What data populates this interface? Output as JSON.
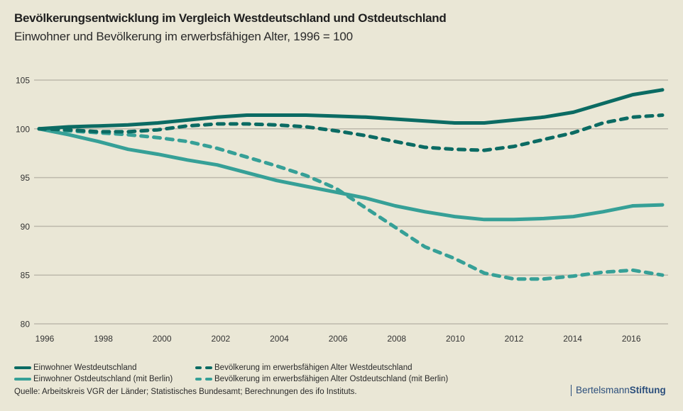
{
  "header": {
    "title": "Bevölkerungsentwicklung im Vergleich Westdeutschland und Ostdeutschland",
    "subtitle": "Einwohner und Bevölkerung im erwerbsfähigen Alter, 1996 = 100"
  },
  "colors": {
    "background": "#EAE7D6",
    "west": "#0B6B63",
    "east": "#36A097",
    "grid": "#BDB9AC",
    "brand": "#2c4f7c"
  },
  "chart_data": {
    "type": "line",
    "title": "Bevölkerungsentwicklung im Vergleich Westdeutschland und Ostdeutschland",
    "subtitle": "Einwohner und Bevölkerung im erwerbsfähigen Alter, 1996 = 100",
    "xlabel": "",
    "ylabel": "",
    "x": [
      1996,
      1997,
      1998,
      1999,
      2000,
      2001,
      2002,
      2003,
      2004,
      2005,
      2006,
      2007,
      2008,
      2009,
      2010,
      2011,
      2012,
      2013,
      2014,
      2015,
      2016,
      2017
    ],
    "xticks": [
      "1996",
      "1998",
      "2000",
      "2002",
      "2004",
      "2006",
      "2008",
      "2010",
      "2012",
      "2014",
      "2016"
    ],
    "yticks": [
      "80",
      "85",
      "90",
      "95",
      "100",
      "105"
    ],
    "ylim": [
      80,
      105
    ],
    "xlim": [
      1996,
      2017
    ],
    "grid": "horizontal",
    "legend_position": "bottom",
    "series": [
      {
        "name": "Einwohner Westdeutschland",
        "color_key": "west",
        "style": "solid",
        "values": [
          100,
          100.2,
          100.3,
          100.4,
          100.6,
          100.9,
          101.2,
          101.4,
          101.4,
          101.4,
          101.3,
          101.2,
          101.0,
          100.8,
          100.6,
          100.6,
          100.9,
          101.2,
          101.7,
          102.6,
          103.5,
          104.0
        ]
      },
      {
        "name": "Bevölkerung im erwerbsfähigen Alter Westdeutschland",
        "color_key": "west",
        "style": "dashed",
        "values": [
          100,
          99.9,
          99.7,
          99.7,
          99.9,
          100.3,
          100.5,
          100.5,
          100.4,
          100.2,
          99.8,
          99.3,
          98.7,
          98.1,
          97.9,
          97.8,
          98.2,
          98.9,
          99.6,
          100.6,
          101.2,
          101.4
        ]
      },
      {
        "name": "Einwohner Ostdeutschland (mit Berlin)",
        "color_key": "east",
        "style": "solid",
        "values": [
          100,
          99.4,
          98.7,
          97.9,
          97.4,
          96.8,
          96.3,
          95.5,
          94.7,
          94.1,
          93.5,
          92.9,
          92.1,
          91.5,
          91.0,
          90.7,
          90.7,
          90.8,
          91.0,
          91.5,
          92.1,
          92.2
        ]
      },
      {
        "name": "Bevölkerung im erwerbsfähigen Alter Ostdeutschland (mit Berlin)",
        "color_key": "east",
        "style": "dashed",
        "values": [
          100,
          99.8,
          99.6,
          99.4,
          99.1,
          98.7,
          98.0,
          97.1,
          96.2,
          95.2,
          93.9,
          91.9,
          89.9,
          87.9,
          86.7,
          85.2,
          84.6,
          84.6,
          84.9,
          85.3,
          85.5,
          85.0
        ]
      }
    ]
  },
  "legend": [
    {
      "label": "Einwohner Westdeutschland",
      "color_key": "west",
      "style": "solid"
    },
    {
      "label": "Bevölkerung im erwerbsfähigen Alter Westdeutschland",
      "color_key": "west",
      "style": "dashed"
    },
    {
      "label": "Einwohner Ostdeutschland (mit Berlin)",
      "color_key": "east",
      "style": "solid"
    },
    {
      "label": "Bevölkerung im erwerbsfähigen Alter Ostdeutschland (mit Berlin)",
      "color_key": "east",
      "style": "dashed"
    }
  ],
  "footer": {
    "source": "Quelle: Arbeitskreis VGR der Länder; Statistisches Bundesamt; Berechnungen des ifo Instituts.",
    "brand_regular": "Bertelsmann",
    "brand_bold": "Stiftung"
  }
}
